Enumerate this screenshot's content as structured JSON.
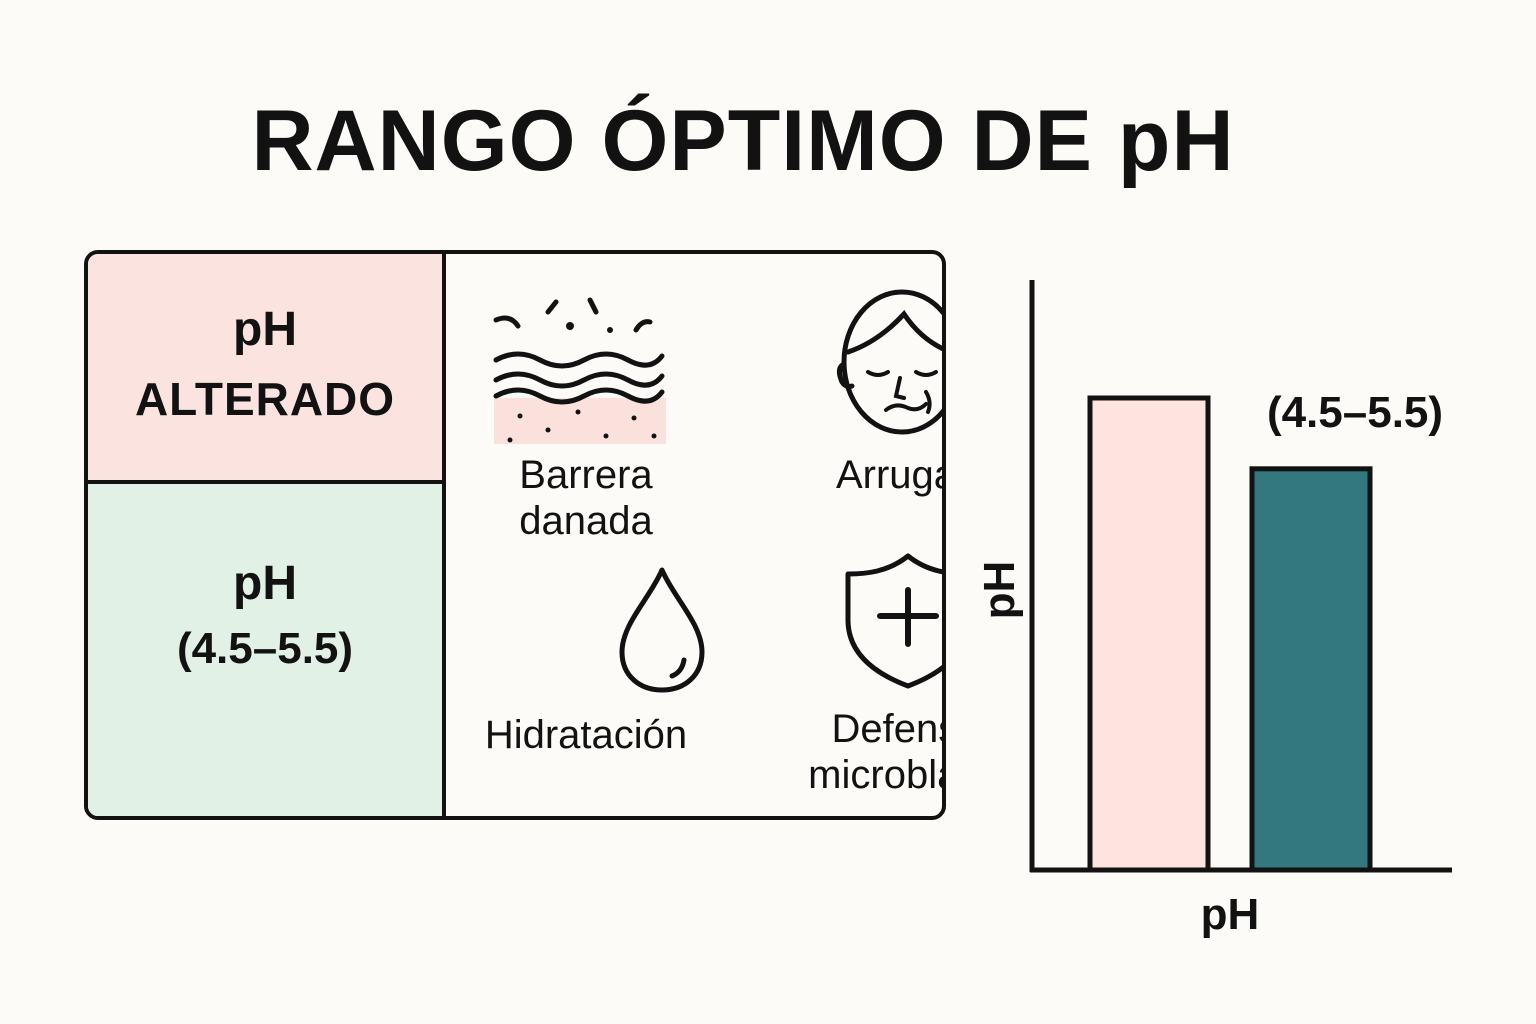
{
  "title": "RANGO ÓPTIMO DE pH",
  "table": {
    "altered": {
      "line1": "pH",
      "line2": "ALTERADO"
    },
    "optimal": {
      "line1": "pH",
      "line2": "(4.5–5.5)"
    }
  },
  "icons": [
    {
      "id": "barrier",
      "icon": "damaged-skin-barrier-icon",
      "label_lines": [
        "Barrera",
        "danada"
      ]
    },
    {
      "id": "wrinkles",
      "icon": "face-wrinkles-icon",
      "label_lines": [
        "Arrugas"
      ]
    },
    {
      "id": "hydration",
      "icon": "water-drop-icon",
      "label_lines": [
        "Hidratación"
      ]
    },
    {
      "id": "defense",
      "icon": "shield-plus-icon",
      "label_lines": [
        "Defensa",
        "microblana"
      ]
    }
  ],
  "colors": {
    "altered": "#fbe4df",
    "optimal": "#e2f1e6",
    "bar_altered": "#fde4de",
    "bar_optimal": "#33777f",
    "stroke": "#121212"
  },
  "chart_data": {
    "type": "bar",
    "xlabel": "pH",
    "ylabel": "pH",
    "categories": [
      "",
      ""
    ],
    "values": [
      0.8,
      0.68
    ],
    "ylim": [
      0,
      1
    ],
    "grid": false,
    "annotations": [
      {
        "bar": 1,
        "text": "(4.5–5.5)"
      }
    ]
  }
}
